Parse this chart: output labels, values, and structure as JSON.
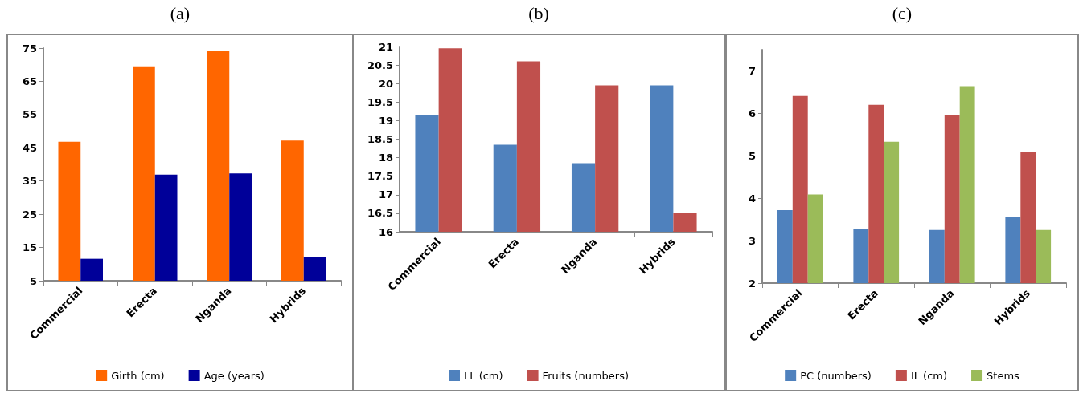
{
  "chart_data": [
    {
      "type": "bar",
      "title": "(a)",
      "categories": [
        "Commercial",
        "Erecta",
        "Nganda",
        "Hybrids"
      ],
      "series": [
        {
          "name": "Girth (cm)",
          "color": "#ff6600",
          "values": [
            46.8,
            69.5,
            74.1,
            47.2
          ]
        },
        {
          "name": "Age (years)",
          "color": "#000099",
          "values": [
            11.6,
            36.9,
            37.3,
            12.0
          ]
        }
      ],
      "ylim": [
        5,
        75
      ],
      "yticks": [
        5,
        15,
        25,
        35,
        45,
        55,
        65,
        75
      ],
      "legend": "bottom"
    },
    {
      "type": "bar",
      "title": "(b)",
      "categories": [
        "Commercial",
        "Erecta",
        "Nganda",
        "Hybrids"
      ],
      "series": [
        {
          "name": "LL (cm)",
          "color": "#4f81bd",
          "values": [
            19.15,
            18.35,
            17.85,
            19.95
          ]
        },
        {
          "name": "Fruits (numbers)",
          "color": "#c0504d",
          "values": [
            20.95,
            20.6,
            19.95,
            16.5
          ]
        }
      ],
      "ylim": [
        16,
        21
      ],
      "yticks": [
        16,
        16.5,
        17,
        17.5,
        18,
        18.5,
        19,
        19.5,
        20,
        20.5,
        21
      ],
      "legend": "bottom"
    },
    {
      "type": "bar",
      "title": "(c)",
      "categories": [
        "Commercial",
        "Erecta",
        "Nganda",
        "Hybrids"
      ],
      "series": [
        {
          "name": "PC (numbers)",
          "color": "#4f81bd",
          "values": [
            3.72,
            3.28,
            3.25,
            3.55
          ]
        },
        {
          "name": "IL (cm)",
          "color": "#c0504d",
          "values": [
            6.41,
            6.2,
            5.96,
            5.1
          ]
        },
        {
          "name": "Stems",
          "color": "#9bbb59",
          "values": [
            4.09,
            5.33,
            6.64,
            3.25
          ]
        }
      ],
      "ylim": [
        2,
        7.5
      ],
      "yticks": [
        2,
        3,
        4,
        5,
        6,
        7
      ],
      "legend": "bottom"
    }
  ]
}
